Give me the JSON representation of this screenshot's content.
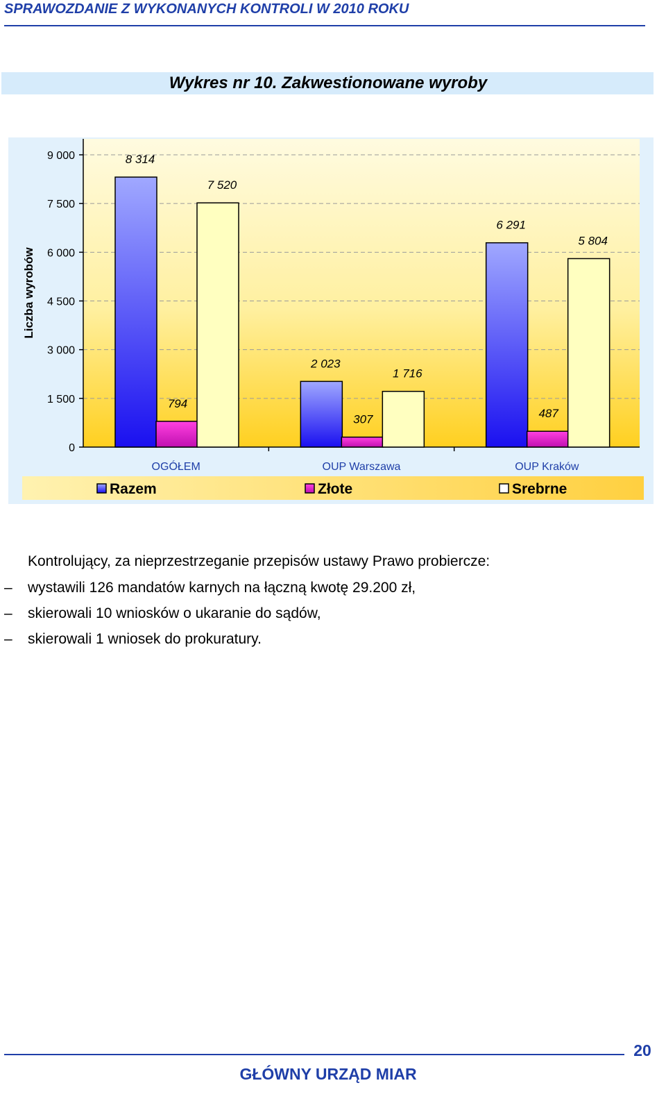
{
  "header": {
    "title": "SPRAWOZDANIE Z WYKONANYCH KONTROLI W 2010 ROKU"
  },
  "chart": {
    "title": "Wykres nr 10.  Zakwestionowane  wyroby"
  },
  "chart_data": {
    "type": "bar",
    "title": "Wykres nr 10.  Zakwestionowane  wyroby",
    "ylabel": "Liczba wyrobów",
    "xlabel": "",
    "ylim": [
      0,
      9000
    ],
    "yticks": [
      0,
      1500,
      3000,
      4500,
      6000,
      7500,
      9000
    ],
    "ytick_labels": [
      "0",
      "1 500",
      "3 000",
      "4 500",
      "6 000",
      "7 500",
      "9 000"
    ],
    "grid": true,
    "legend_position": "bottom",
    "categories": [
      "OGÓŁEM",
      "OUP Warszawa",
      "OUP Kraków"
    ],
    "series": [
      {
        "name": "Razem",
        "values": [
          8314,
          2023,
          6291
        ],
        "labels": [
          "8 314",
          "2 023",
          "6 291"
        ],
        "color": "#5a5cf0"
      },
      {
        "name": "Złote",
        "values": [
          794,
          307,
          487
        ],
        "labels": [
          "794",
          "307",
          "487"
        ],
        "color": "#e020c8"
      },
      {
        "name": "Srebrne",
        "values": [
          7520,
          1716,
          5804
        ],
        "labels": [
          "7 520",
          "1 716",
          "5 804"
        ],
        "color": "#ffffc0"
      }
    ]
  },
  "body": {
    "intro": "Kontrolujący, za nieprzestrzeganie przepisów ustawy Prawo probiercze:",
    "bullets": [
      "wystawili 126 mandatów karnych na łączną kwotę 29.200 zł,",
      "skierowali 10 wniosków o ukaranie do sądów,",
      "skierowali 1 wniosek do prokuratury."
    ],
    "bullet_symbol": "–"
  },
  "footer": {
    "page_number": "20",
    "organization": "GŁÓWNY URZĄD MIAR"
  }
}
